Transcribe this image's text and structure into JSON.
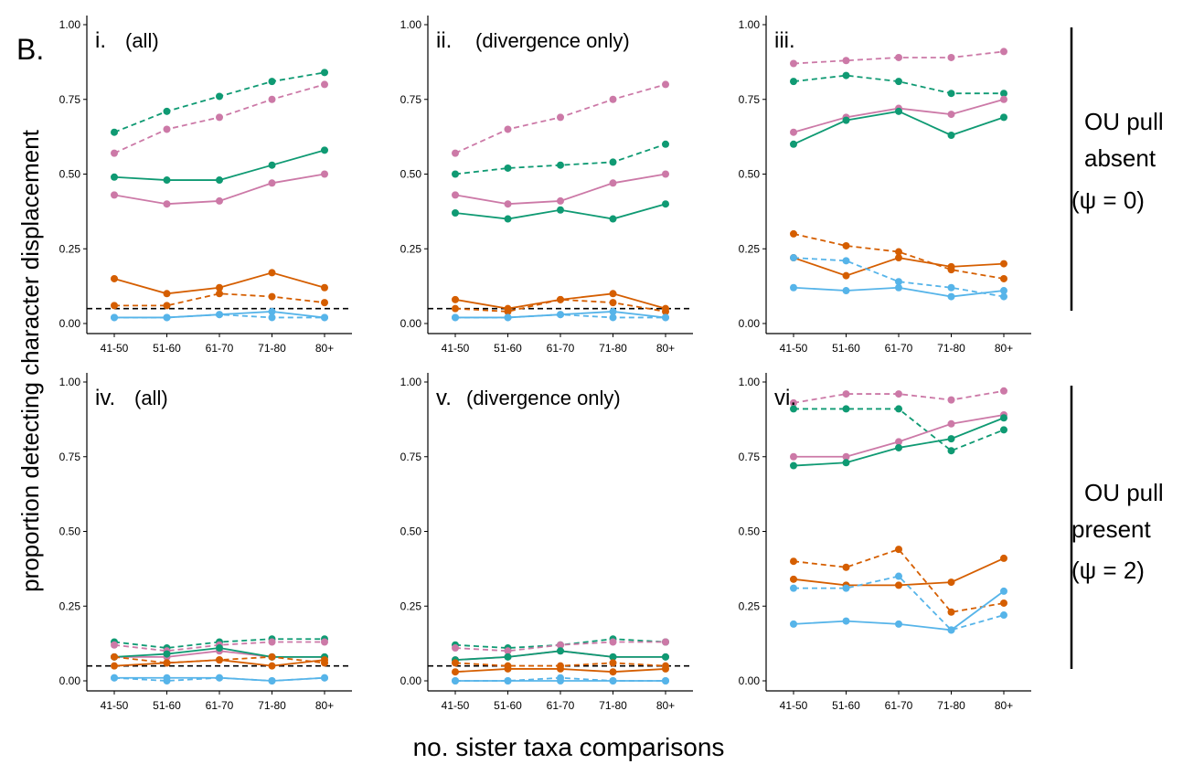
{
  "figure_label": "B.",
  "ylabel": "proportion detecting character displacement",
  "xlabel": "no. sister taxa comparisons",
  "row_labels": [
    {
      "line1": "OU pull",
      "line2": "absent",
      "line3": "(ψ = 0)"
    },
    {
      "line1": "OU pull",
      "line2": "present",
      "line3": "(ψ = 2)"
    }
  ],
  "colors": {
    "green": "#0f9a73",
    "pink": "#cc79a7",
    "orange": "#d55e00",
    "blue": "#56b4e9"
  },
  "chart_data": [
    {
      "type": "line",
      "title": "i.",
      "subtitle": "(all)",
      "categories": [
        "41-50",
        "51-60",
        "61-70",
        "71-80",
        "80+"
      ],
      "ylim": [
        0,
        1
      ],
      "yticks": [
        "0.00",
        "0.25",
        "0.50",
        "0.75",
        "1.00"
      ],
      "reference_line": 0.05,
      "series": [
        {
          "color": "#0f9a73",
          "dashed": true,
          "values": [
            0.64,
            0.71,
            0.76,
            0.81,
            0.84
          ]
        },
        {
          "color": "#cc79a7",
          "dashed": true,
          "values": [
            0.57,
            0.65,
            0.69,
            0.75,
            0.8
          ]
        },
        {
          "color": "#0f9a73",
          "dashed": false,
          "values": [
            0.49,
            0.48,
            0.48,
            0.53,
            0.58
          ]
        },
        {
          "color": "#cc79a7",
          "dashed": false,
          "values": [
            0.43,
            0.4,
            0.41,
            0.47,
            0.5
          ]
        },
        {
          "color": "#d55e00",
          "dashed": false,
          "values": [
            0.15,
            0.1,
            0.12,
            0.17,
            0.12
          ]
        },
        {
          "color": "#d55e00",
          "dashed": true,
          "values": [
            0.06,
            0.06,
            0.1,
            0.09,
            0.07
          ]
        },
        {
          "color": "#56b4e9",
          "dashed": false,
          "values": [
            0.02,
            0.02,
            0.03,
            0.04,
            0.02
          ]
        },
        {
          "color": "#56b4e9",
          "dashed": true,
          "values": [
            0.02,
            0.02,
            0.03,
            0.02,
            0.02
          ]
        }
      ]
    },
    {
      "type": "line",
      "title": "ii.",
      "subtitle": "(divergence only)",
      "categories": [
        "41-50",
        "51-60",
        "61-70",
        "71-80",
        "80+"
      ],
      "ylim": [
        0,
        1
      ],
      "yticks": [
        "0.00",
        "0.25",
        "0.50",
        "0.75",
        "1.00"
      ],
      "reference_line": 0.05,
      "series": [
        {
          "color": "#cc79a7",
          "dashed": true,
          "values": [
            0.57,
            0.65,
            0.69,
            0.75,
            0.8
          ]
        },
        {
          "color": "#0f9a73",
          "dashed": true,
          "values": [
            0.5,
            0.52,
            0.53,
            0.54,
            0.6
          ]
        },
        {
          "color": "#cc79a7",
          "dashed": false,
          "values": [
            0.43,
            0.4,
            0.41,
            0.47,
            0.5
          ]
        },
        {
          "color": "#0f9a73",
          "dashed": false,
          "values": [
            0.37,
            0.35,
            0.38,
            0.35,
            0.4
          ]
        },
        {
          "color": "#d55e00",
          "dashed": false,
          "values": [
            0.08,
            0.05,
            0.08,
            0.1,
            0.05
          ]
        },
        {
          "color": "#d55e00",
          "dashed": true,
          "values": [
            0.05,
            0.04,
            0.08,
            0.07,
            0.04
          ]
        },
        {
          "color": "#56b4e9",
          "dashed": false,
          "values": [
            0.02,
            0.02,
            0.03,
            0.04,
            0.02
          ]
        },
        {
          "color": "#56b4e9",
          "dashed": true,
          "values": [
            0.02,
            0.02,
            0.03,
            0.02,
            0.02
          ]
        }
      ]
    },
    {
      "type": "line",
      "title": "iii.",
      "subtitle": "",
      "categories": [
        "41-50",
        "51-60",
        "61-70",
        "71-80",
        "80+"
      ],
      "ylim": [
        0,
        1
      ],
      "yticks": [
        "0.00",
        "0.25",
        "0.50",
        "0.75",
        "1.00"
      ],
      "reference_line": null,
      "series": [
        {
          "color": "#cc79a7",
          "dashed": true,
          "values": [
            0.87,
            0.88,
            0.89,
            0.89,
            0.91
          ]
        },
        {
          "color": "#0f9a73",
          "dashed": true,
          "values": [
            0.81,
            0.83,
            0.81,
            0.77,
            0.77
          ]
        },
        {
          "color": "#cc79a7",
          "dashed": false,
          "values": [
            0.64,
            0.69,
            0.72,
            0.7,
            0.75
          ]
        },
        {
          "color": "#0f9a73",
          "dashed": false,
          "values": [
            0.6,
            0.68,
            0.71,
            0.63,
            0.69
          ]
        },
        {
          "color": "#d55e00",
          "dashed": true,
          "values": [
            0.3,
            0.26,
            0.24,
            0.18,
            0.15
          ]
        },
        {
          "color": "#d55e00",
          "dashed": false,
          "values": [
            0.22,
            0.16,
            0.22,
            0.19,
            0.2
          ]
        },
        {
          "color": "#56b4e9",
          "dashed": true,
          "values": [
            0.22,
            0.21,
            0.14,
            0.12,
            0.09
          ]
        },
        {
          "color": "#56b4e9",
          "dashed": false,
          "values": [
            0.12,
            0.11,
            0.12,
            0.09,
            0.11
          ]
        }
      ]
    },
    {
      "type": "line",
      "title": "iv.",
      "subtitle": "(all)",
      "categories": [
        "41-50",
        "51-60",
        "61-70",
        "71-80",
        "80+"
      ],
      "ylim": [
        0,
        1
      ],
      "yticks": [
        "0.00",
        "0.25",
        "0.50",
        "0.75",
        "1.00"
      ],
      "reference_line": 0.05,
      "series": [
        {
          "color": "#0f9a73",
          "dashed": true,
          "values": [
            0.13,
            0.11,
            0.13,
            0.14,
            0.14
          ]
        },
        {
          "color": "#cc79a7",
          "dashed": true,
          "values": [
            0.12,
            0.1,
            0.12,
            0.13,
            0.13
          ]
        },
        {
          "color": "#cc79a7",
          "dashed": false,
          "values": [
            0.08,
            0.08,
            0.1,
            0.08,
            0.08
          ]
        },
        {
          "color": "#0f9a73",
          "dashed": false,
          "values": [
            0.08,
            0.09,
            0.11,
            0.08,
            0.08
          ]
        },
        {
          "color": "#d55e00",
          "dashed": true,
          "values": [
            0.08,
            0.06,
            0.07,
            0.08,
            0.06
          ]
        },
        {
          "color": "#d55e00",
          "dashed": false,
          "values": [
            0.05,
            0.06,
            0.07,
            0.05,
            0.07
          ]
        },
        {
          "color": "#56b4e9",
          "dashed": false,
          "values": [
            0.01,
            0.01,
            0.01,
            0.0,
            0.01
          ]
        },
        {
          "color": "#56b4e9",
          "dashed": true,
          "values": [
            0.01,
            0.0,
            0.01,
            0.0,
            0.01
          ]
        }
      ]
    },
    {
      "type": "line",
      "title": "v.",
      "subtitle": "(divergence only)",
      "categories": [
        "41-50",
        "51-60",
        "61-70",
        "71-80",
        "80+"
      ],
      "ylim": [
        0,
        1
      ],
      "yticks": [
        "0.00",
        "0.25",
        "0.50",
        "0.75",
        "1.00"
      ],
      "reference_line": 0.05,
      "series": [
        {
          "color": "#0f9a73",
          "dashed": true,
          "values": [
            0.12,
            0.11,
            0.12,
            0.14,
            0.13
          ]
        },
        {
          "color": "#cc79a7",
          "dashed": true,
          "values": [
            0.11,
            0.1,
            0.12,
            0.13,
            0.13
          ]
        },
        {
          "color": "#cc79a7",
          "dashed": false,
          "values": [
            0.07,
            0.08,
            0.1,
            0.08,
            0.08
          ]
        },
        {
          "color": "#0f9a73",
          "dashed": false,
          "values": [
            0.07,
            0.08,
            0.1,
            0.08,
            0.08
          ]
        },
        {
          "color": "#d55e00",
          "dashed": true,
          "values": [
            0.06,
            0.05,
            0.05,
            0.06,
            0.05
          ]
        },
        {
          "color": "#d55e00",
          "dashed": false,
          "values": [
            0.03,
            0.04,
            0.04,
            0.03,
            0.04
          ]
        },
        {
          "color": "#56b4e9",
          "dashed": false,
          "values": [
            0.0,
            0.0,
            0.0,
            0.0,
            0.0
          ]
        },
        {
          "color": "#56b4e9",
          "dashed": true,
          "values": [
            0.0,
            0.0,
            0.01,
            0.0,
            0.0
          ]
        }
      ]
    },
    {
      "type": "line",
      "title": "vi.",
      "subtitle": "",
      "categories": [
        "41-50",
        "51-60",
        "61-70",
        "71-80",
        "80+"
      ],
      "ylim": [
        0,
        1
      ],
      "yticks": [
        "0.00",
        "0.25",
        "0.50",
        "0.75",
        "1.00"
      ],
      "reference_line": null,
      "series": [
        {
          "color": "#cc79a7",
          "dashed": true,
          "values": [
            0.93,
            0.96,
            0.96,
            0.94,
            0.97
          ]
        },
        {
          "color": "#0f9a73",
          "dashed": true,
          "values": [
            0.91,
            0.91,
            0.91,
            0.77,
            0.84
          ]
        },
        {
          "color": "#cc79a7",
          "dashed": false,
          "values": [
            0.75,
            0.75,
            0.8,
            0.86,
            0.89
          ]
        },
        {
          "color": "#0f9a73",
          "dashed": false,
          "values": [
            0.72,
            0.73,
            0.78,
            0.81,
            0.88
          ]
        },
        {
          "color": "#d55e00",
          "dashed": true,
          "values": [
            0.4,
            0.38,
            0.44,
            0.23,
            0.26
          ]
        },
        {
          "color": "#d55e00",
          "dashed": false,
          "values": [
            0.34,
            0.32,
            0.32,
            0.33,
            0.41
          ]
        },
        {
          "color": "#56b4e9",
          "dashed": true,
          "values": [
            0.31,
            0.31,
            0.35,
            0.17,
            0.22
          ]
        },
        {
          "color": "#56b4e9",
          "dashed": false,
          "values": [
            0.19,
            0.2,
            0.19,
            0.17,
            0.3
          ]
        }
      ]
    }
  ]
}
